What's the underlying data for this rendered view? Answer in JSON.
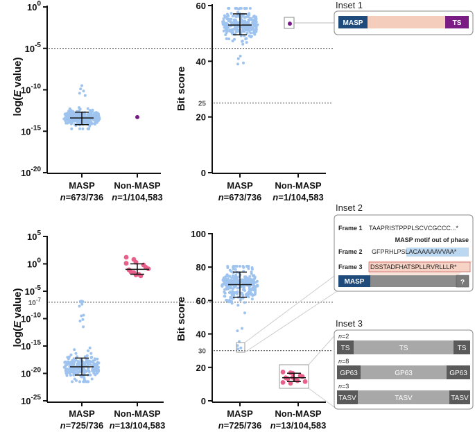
{
  "chart_data": [
    {
      "id": "A",
      "type": "scatter",
      "ylabel": "log(E value)",
      "y_scale": "log10",
      "ylim_exp": [
        -20,
        0
      ],
      "ticks": [
        {
          "base": "10",
          "exp": "0",
          "v": 0
        },
        {
          "base": "10",
          "exp": "-5",
          "v": -5
        },
        {
          "base": "10",
          "exp": "-10",
          "v": -10
        },
        {
          "base": "10",
          "exp": "-15",
          "v": -15
        },
        {
          "base": "10",
          "exp": "-20",
          "v": -20
        }
      ],
      "reference_line": {
        "value": -5,
        "label": ""
      },
      "categories": [
        {
          "name": "MASP",
          "n_prefix": "n",
          "n_value": "=673/736",
          "median": -13.4,
          "q1": -14.2,
          "q3": -12.7,
          "min": -14.7,
          "max": -9.5,
          "count": 673,
          "color": "#9ec3ef"
        },
        {
          "name": "Non-MASP",
          "n_prefix": "n",
          "n_value": "=1/104,583",
          "points": [
            -13.3
          ],
          "color": "#7a1a8a"
        }
      ]
    },
    {
      "id": "B",
      "type": "scatter",
      "ylabel": "Bit score",
      "ylim": [
        0,
        60
      ],
      "ticks": [
        {
          "label": "60",
          "v": 60
        },
        {
          "label": "40",
          "v": 40
        },
        {
          "label": "20",
          "v": 20
        },
        {
          "label": "0",
          "v": 0
        }
      ],
      "reference_line": {
        "value": 25,
        "label": "25"
      },
      "categories": [
        {
          "name": "MASP",
          "n_prefix": "n",
          "n_value": "=673/736",
          "median": 53,
          "q1": 49.5,
          "q3": 57,
          "min": 39,
          "max": 59,
          "count": 673,
          "color": "#9ec3ef"
        },
        {
          "name": "Non-MASP",
          "n_prefix": "n",
          "n_value": "=1/104,583",
          "points": [
            53.5
          ],
          "color": "#7a1a8a"
        }
      ]
    },
    {
      "id": "C",
      "type": "scatter",
      "ylabel": "log(E value)",
      "y_scale": "log10",
      "ylim_exp": [
        -25,
        5
      ],
      "ticks": [
        {
          "base": "10",
          "exp": "5",
          "v": 5
        },
        {
          "base": "10",
          "exp": "0",
          "v": 0
        },
        {
          "base": "10",
          "exp": "-5",
          "v": -5
        },
        {
          "base": "10",
          "exp": "-10",
          "v": -10
        },
        {
          "base": "10",
          "exp": "-15",
          "v": -15
        },
        {
          "base": "10",
          "exp": "-20",
          "v": -20
        },
        {
          "base": "10",
          "exp": "-25",
          "v": -25
        }
      ],
      "reference_line": {
        "value": -7,
        "label_base": "10",
        "label_exp": "-7"
      },
      "categories": [
        {
          "name": "MASP",
          "n_prefix": "n",
          "n_value": "=725/736",
          "median": -18.8,
          "q1": -20.3,
          "q3": -17.2,
          "min": -21.5,
          "max": -6.8,
          "count": 725,
          "color": "#9ec3ef"
        },
        {
          "name": "Non-MASP",
          "n_prefix": "n",
          "n_value": "=13/104,583",
          "points": [
            1.2,
            0.8,
            0.3,
            -0.2,
            -0.6,
            -1.1,
            -1.5,
            -1.9,
            -2.2,
            -0.9,
            0.1,
            -1.6,
            -2.0
          ],
          "median": -1.0,
          "q1": -1.9,
          "q3": 0.0,
          "color": "#e8608a"
        }
      ]
    },
    {
      "id": "D",
      "type": "scatter",
      "ylabel": "Bit score",
      "ylim": [
        0,
        100
      ],
      "ticks": [
        {
          "label": "100",
          "v": 100
        },
        {
          "label": "80",
          "v": 80
        },
        {
          "label": "60",
          "v": 60
        },
        {
          "label": "40",
          "v": 40
        },
        {
          "label": "20",
          "v": 20
        },
        {
          "label": "0",
          "v": 0
        }
      ],
      "reference_line": {
        "value": 30,
        "label": "30"
      },
      "categories": [
        {
          "name": "MASP",
          "n_prefix": "n",
          "n_value": "=725/736",
          "median": 69.5,
          "q1": 62,
          "q3": 77,
          "min": 31,
          "max": 80.5,
          "count": 725,
          "color": "#9ec3ef"
        },
        {
          "name": "Non-MASP",
          "n_prefix": "n",
          "n_value": "=13/104,583",
          "points": [
            17.2,
            16.8,
            16.5,
            15,
            14.5,
            13.8,
            13.2,
            12.5,
            12,
            11.5,
            11,
            10.5,
            14
          ],
          "median": 13.8,
          "q1": 11.5,
          "q3": 16.5,
          "color": "#e8608a"
        }
      ]
    }
  ],
  "insets": {
    "inset1": {
      "title": "Inset 1",
      "left_label": "MASP",
      "right_label": "TS",
      "colors": {
        "left": "#1f4a7c",
        "mid": "#f5cdbd",
        "right": "#7b1b84"
      }
    },
    "inset2": {
      "title": "Inset 2",
      "frame1_label": "Frame 1",
      "frame1_seq": "TAAPRISTPPPLSCVCGCCC...*",
      "motif_note": "MASP motif out of phase",
      "frame2_label": "Frame 2",
      "frame2_seq_a": "GFPRHLPS",
      "frame2_seq_b": "LACAAAAAVVAA*",
      "frame3_label": "Frame 3",
      "frame3_seq": "DSSTADFHATSPLLRVRLLLR*",
      "bar_left": "MASP",
      "bar_right": "?",
      "colors": {
        "masp": "#1f4a7c",
        "grey": "#8c8c8c",
        "hl_blue": "#bcd7f0",
        "hl_pink": "#f7d3c6"
      }
    },
    "inset3": {
      "title": "Inset 3",
      "rows": [
        {
          "n_prefix": "n",
          "n_value": "=2",
          "left": "TS",
          "mid": "TS",
          "right": "TS"
        },
        {
          "n_prefix": "n",
          "n_value": "=8",
          "left": "GP63",
          "mid": "GP63",
          "right": "GP63"
        },
        {
          "n_prefix": "n",
          "n_value": "=3",
          "left": "TASV",
          "mid": "TASV",
          "right": "TASV"
        }
      ],
      "colors": {
        "dark": "#5a5a5a",
        "light": "#a8a8a8"
      }
    }
  }
}
